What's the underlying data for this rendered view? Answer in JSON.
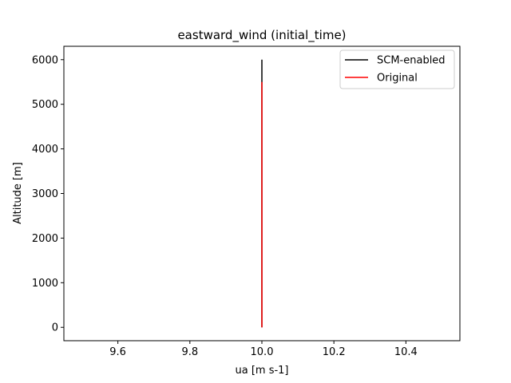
{
  "chart_data": {
    "type": "line",
    "title": "eastward_wind (initial_time)",
    "xlabel": "ua [m s-1]",
    "ylabel": "Altitude [m]",
    "xlim": [
      9.45,
      10.55
    ],
    "ylim": [
      -300,
      6300
    ],
    "xticks": [
      9.6,
      9.8,
      10.0,
      10.2,
      10.4
    ],
    "xtick_labels": [
      "9.6",
      "9.8",
      "10.0",
      "10.2",
      "10.4"
    ],
    "yticks": [
      0,
      1000,
      2000,
      3000,
      4000,
      5000,
      6000
    ],
    "ytick_labels": [
      "0",
      "1000",
      "2000",
      "3000",
      "4000",
      "5000",
      "6000"
    ],
    "grid": false,
    "legend_position": "top-right",
    "series": [
      {
        "name": "SCM-enabled",
        "color": "#000000",
        "points": [
          [
            10.0,
            0
          ],
          [
            10.0,
            6000
          ]
        ]
      },
      {
        "name": "Original",
        "color": "#ff0000",
        "points": [
          [
            10.0,
            0
          ],
          [
            10.0,
            5500
          ]
        ]
      }
    ]
  }
}
